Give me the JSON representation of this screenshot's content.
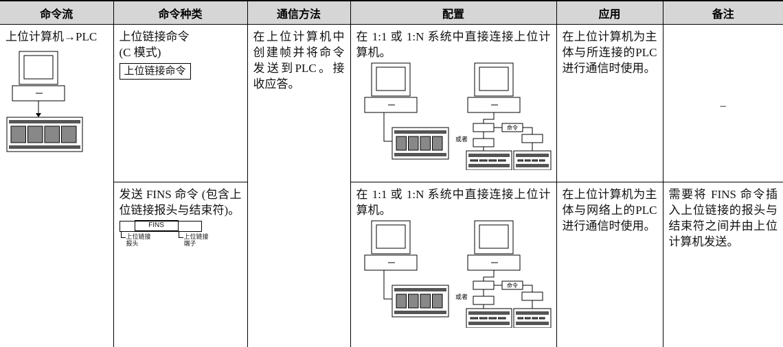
{
  "table": {
    "header": [
      "命令流",
      "命令种类",
      "通信方法",
      "配置",
      "应用",
      "备注"
    ],
    "flow": "上位计算机→PLC",
    "method": "在上位计算机中创建帧并将命令发送到PLC。接收应答。",
    "rows": [
      {
        "kind": "上位链接命令",
        "kind_mode": "(C 模式)",
        "kind_box": "上位链接命令",
        "config": "在 1:1 或 1:N 系统中直接连接上位计算机。",
        "config_or": "或者",
        "config_cmd": "命令",
        "use": "在上位计算机为主体与所连接的PLC进行通信时使用。",
        "note": "–"
      },
      {
        "kind": "发送 FINS 命令 (包含上位链接报头与结束符)。",
        "kind_fins": "FINS",
        "kind_header": "上位链接报头",
        "kind_terminator": "上位链接端子",
        "config": "在 1:1 或 1:N 系统中直接连接上位计算机。",
        "config_or": "或者",
        "config_cmd": "命令",
        "use": "在上位计算机为主体与网络上的PLC进行通信时使用。",
        "note": "需要将 FINS 命令插入上位链接的报头与结束符之间并由上位计算机发送。"
      }
    ]
  }
}
